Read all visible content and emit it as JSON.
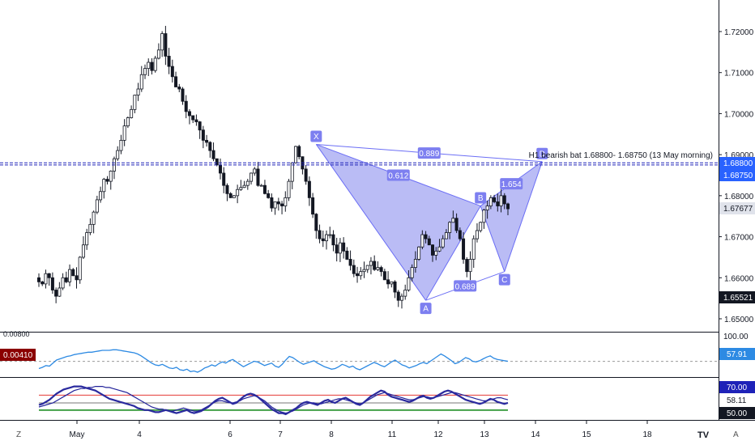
{
  "chart_data": {
    "type": "candlestick",
    "x_tick_labels": [
      "May",
      "4",
      "6",
      "7",
      "8",
      "11",
      "12",
      "13",
      "14",
      "15",
      "18"
    ],
    "y_tick_labels": [
      "1.72000",
      "1.71000",
      "1.70000",
      "1.69000",
      "1.68000",
      "1.67000",
      "1.66000",
      "1.65000"
    ],
    "y_ticks": [
      1.72,
      1.71,
      1.7,
      1.69,
      1.68,
      1.67,
      1.66,
      1.65
    ],
    "ylim": [
      1.6465,
      1.7284
    ],
    "price_close": [
      1.659,
      1.6585,
      1.661,
      1.66,
      1.657,
      1.6555,
      1.6575,
      1.66,
      1.659,
      1.662,
      1.6605,
      1.6595,
      1.665,
      1.668,
      1.671,
      1.673,
      1.676,
      1.679,
      1.681,
      1.684,
      1.6835,
      1.686,
      1.689,
      1.691,
      1.6935,
      1.697,
      1.699,
      1.701,
      1.7045,
      1.706,
      1.7095,
      1.711,
      1.7125,
      1.7105,
      1.7135,
      1.7155,
      1.7195,
      1.714,
      1.7115,
      1.709,
      1.7065,
      1.706,
      1.703,
      1.7005,
      1.6995,
      1.6985,
      1.698,
      1.696,
      1.6935,
      1.693,
      1.691,
      1.689,
      1.6875,
      1.6855,
      1.6825,
      1.6805,
      1.6795,
      1.68,
      1.6815,
      1.682,
      1.6825,
      1.6835,
      1.6855,
      1.6865,
      1.6825,
      1.6825,
      1.6805,
      1.6795,
      1.677,
      1.6785,
      1.678,
      1.6775,
      1.6795,
      1.6835,
      1.688,
      1.692,
      1.6895,
      1.6865,
      1.6835,
      1.6795,
      1.6755,
      1.6715,
      1.6695,
      1.669,
      1.6705,
      1.6705,
      1.668,
      1.666,
      1.6685,
      1.6665,
      1.6645,
      1.663,
      1.661,
      1.6605,
      1.6615,
      1.662,
      1.663,
      1.664,
      1.662,
      1.6625,
      1.6615,
      1.6595,
      1.6585,
      1.659,
      1.6565,
      1.6545,
      1.6555,
      1.657,
      1.66,
      1.6625,
      1.6645,
      1.6675,
      1.6705,
      1.6695,
      1.668,
      1.6655,
      1.6665,
      1.6675,
      1.6695,
      1.671,
      1.6735,
      1.6745,
      1.6715,
      1.6695,
      1.6645,
      1.6615,
      1.6645,
      1.6695,
      1.6715,
      1.6735,
      1.6765,
      1.6775,
      1.6795,
      1.6785,
      1.6775,
      1.68,
      1.678,
      1.6768
    ],
    "annotation_text": "H1 bearish bat 1.68800- 1.68750 (13 May morning)",
    "pattern": {
      "points": [
        {
          "label": "X",
          "value": 1.6925
        },
        {
          "label": "A",
          "value": 1.6545
        },
        {
          "label": "B",
          "value": 1.6775
        },
        {
          "label": "C",
          "value": 1.6615
        },
        {
          "label": "D",
          "value": 1.6883
        }
      ],
      "ratios": [
        "0.612",
        "0.689",
        "1.654",
        "0.889"
      ]
    },
    "levels": [
      1.688,
      1.6875
    ],
    "price_tags": {
      "level_high": "1.68800",
      "level_low": "1.68750",
      "last": "1.67677",
      "low": "1.65521"
    },
    "indicator1": {
      "left_tag": "0.00410",
      "top_tick": "100.00",
      "top_left_label": "0.00800",
      "last_tag": "57.91",
      "values": [
        46,
        48,
        51,
        50,
        55,
        60,
        62,
        64,
        66,
        67,
        69,
        70,
        71,
        72,
        73,
        73,
        74,
        75,
        76,
        76,
        76,
        77,
        77,
        76,
        75,
        74,
        73,
        72,
        70,
        67,
        63,
        59,
        55,
        52,
        51,
        53,
        50,
        47,
        46,
        48,
        44,
        43,
        45,
        41,
        42,
        40,
        43,
        47,
        49,
        52,
        50,
        54,
        57,
        55,
        59,
        61,
        57,
        53,
        49,
        52,
        55,
        58,
        57,
        54,
        51,
        53,
        55,
        50,
        48,
        53,
        60,
        66,
        64,
        60,
        56,
        53,
        55,
        57,
        59,
        55,
        52,
        49,
        47,
        45,
        46,
        49,
        53,
        51,
        48,
        50,
        46,
        44,
        47,
        50,
        53,
        56,
        54,
        51,
        49,
        53,
        57,
        60,
        56,
        52,
        50,
        47,
        49,
        51,
        54,
        56,
        54,
        58,
        62,
        66,
        70,
        67,
        63,
        59,
        54,
        56,
        60,
        64,
        62,
        58,
        57,
        59,
        62,
        65,
        67,
        63,
        61,
        60,
        59,
        58
      ]
    },
    "indicator2": {
      "tag_top": "70.00",
      "tag_mid": "58.11",
      "tag_bottom": "50.00",
      "line1_values": [
        54,
        55,
        56,
        57,
        58,
        60,
        62,
        64,
        66,
        68,
        70,
        71,
        72,
        72,
        73,
        73,
        74,
        74,
        74,
        73,
        73,
        72,
        71,
        70,
        69,
        68,
        66,
        64,
        62,
        60,
        58,
        56,
        54,
        53,
        52,
        52,
        51,
        50,
        50,
        51,
        52,
        53,
        52,
        51,
        50,
        50,
        51,
        53,
        55,
        57,
        59,
        60,
        60,
        59,
        58,
        58,
        59,
        60,
        62,
        63,
        64,
        65,
        64,
        62,
        60,
        57,
        54,
        52,
        50,
        49,
        48,
        49,
        50,
        52,
        54,
        56,
        57,
        58,
        58,
        57,
        57,
        58,
        59,
        60,
        61,
        62,
        62,
        61,
        60,
        59,
        58,
        57,
        58,
        60,
        62,
        64,
        66,
        67,
        68,
        67,
        66,
        65,
        64,
        63,
        62,
        61,
        61,
        62,
        63,
        64,
        64,
        63,
        63,
        64,
        65,
        66,
        67,
        68,
        68,
        67,
        66,
        65,
        64,
        63,
        62,
        61,
        60,
        60,
        61,
        62,
        63,
        63,
        62,
        61
      ],
      "line2_values": [
        56,
        57,
        59,
        61,
        64,
        67,
        69,
        71,
        72,
        73,
        74,
        74,
        74,
        73,
        72,
        71,
        70,
        68,
        66,
        64,
        62,
        61,
        60,
        59,
        58,
        57,
        56,
        55,
        53,
        52,
        51,
        51,
        50,
        49,
        49,
        50,
        51,
        50,
        49,
        48,
        49,
        50,
        51,
        49,
        48,
        49,
        50,
        52,
        54,
        57,
        60,
        62,
        63,
        61,
        59,
        57,
        58,
        61,
        64,
        66,
        67,
        66,
        64,
        61,
        58,
        55,
        52,
        50,
        48,
        48,
        47,
        49,
        51,
        53,
        56,
        58,
        59,
        58,
        57,
        56,
        58,
        60,
        61,
        59,
        58,
        60,
        62,
        63,
        61,
        59,
        57,
        56,
        58,
        61,
        64,
        66,
        68,
        70,
        69,
        66,
        64,
        63,
        62,
        61,
        60,
        59,
        60,
        62,
        64,
        65,
        63,
        62,
        63,
        65,
        67,
        69,
        70,
        69,
        67,
        65,
        63,
        61,
        60,
        59,
        58,
        57,
        58,
        60,
        62,
        61,
        59,
        58,
        57,
        58
      ]
    },
    "grid": false,
    "logo": "TV"
  },
  "bottom_left_button": "Z",
  "bottom_right_button": "A",
  "colors": {
    "up": "#26a69a",
    "down": "#ef5350",
    "pattern_fill": "#9598f0",
    "pattern_stroke": "#6b6ef5",
    "pattern_label": "#7d7ff0",
    "level_line": "#1e22b8",
    "tag_blue": "#2962ff",
    "tag_dark": "#131722",
    "tag_red": "#8b0000",
    "indicator_line": "#2d8ae3",
    "ind2_line": "#23239a",
    "ind2_red": "#e53935",
    "ind2_green": "#43a047",
    "ind2_gray": "#777777"
  }
}
